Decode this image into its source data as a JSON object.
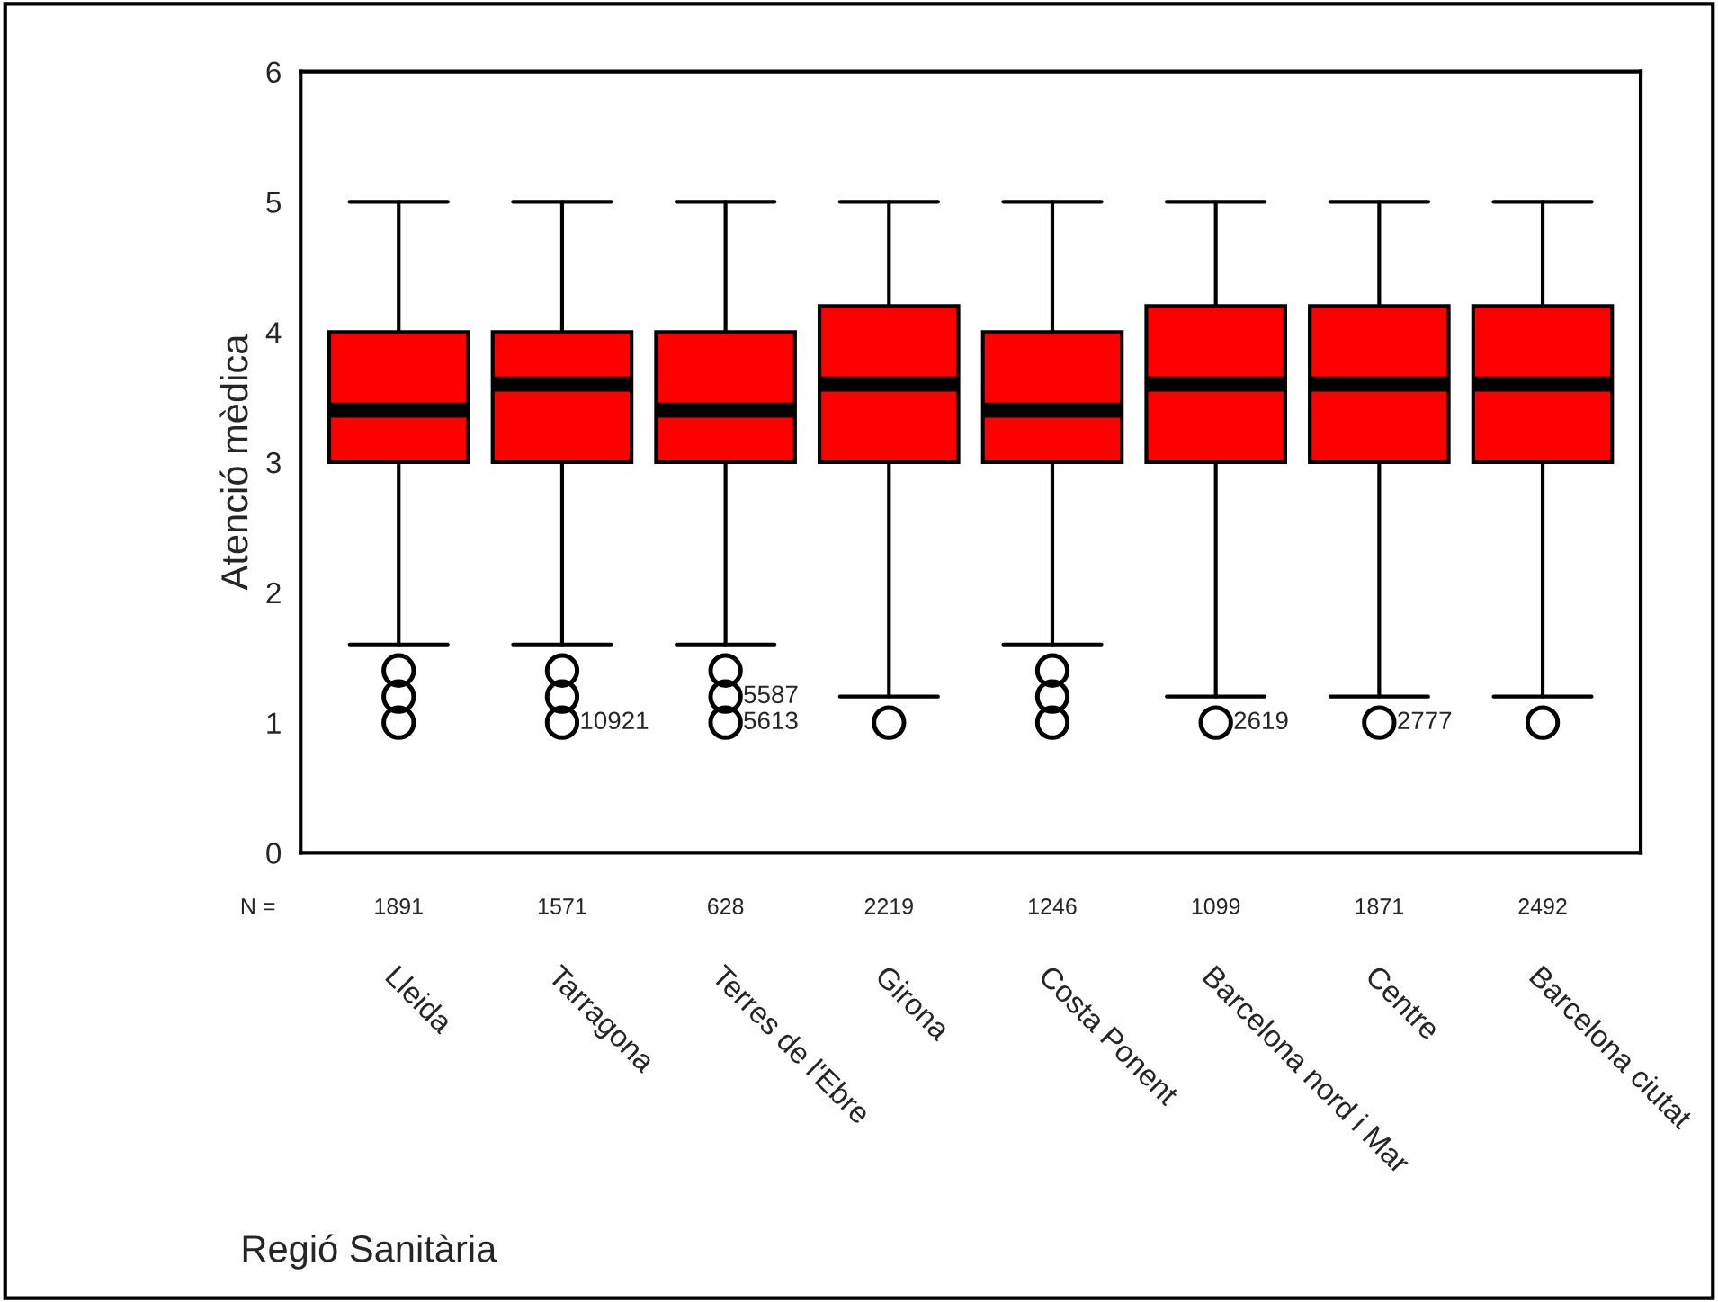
{
  "chart_data": {
    "type": "box",
    "xlabel": "Regió Sanitària",
    "ylabel": "Atenció mèdica",
    "categories": [
      "Lleida",
      "Tarragona",
      "Terres de l'Ebre",
      "Girona",
      "Costa Ponent",
      "Barcelona nord i Mar",
      "Centre",
      "Barcelona ciutat"
    ],
    "color": "#ff0000",
    "boxes": [
      {
        "low": 1.6,
        "q1": 3,
        "median": 3.4,
        "q3": 4,
        "high": 5,
        "outliers": [
          1.4,
          1.2,
          1.0
        ]
      },
      {
        "low": 1.6,
        "q1": 3,
        "median": 3.6,
        "q3": 4,
        "high": 5,
        "outliers": [
          1.4,
          1.2,
          1.0
        ]
      },
      {
        "low": 1.6,
        "q1": 3,
        "median": 3.4,
        "q3": 4,
        "high": 5,
        "outliers": [
          1.4,
          1.2,
          1.0
        ]
      },
      {
        "low": 1.2,
        "q1": 3,
        "median": 3.6,
        "q3": 4.2,
        "high": 5,
        "outliers": [
          1.0
        ]
      },
      {
        "low": 1.6,
        "q1": 3,
        "median": 3.4,
        "q3": 4,
        "high": 5,
        "outliers": [
          1.4,
          1.2,
          1.0
        ]
      },
      {
        "low": 1.2,
        "q1": 3,
        "median": 3.6,
        "q3": 4.2,
        "high": 5,
        "outliers": [
          1.0
        ]
      },
      {
        "low": 1.2,
        "q1": 3,
        "median": 3.6,
        "q3": 4.2,
        "high": 5,
        "outliers": [
          1.0
        ]
      },
      {
        "low": 1.2,
        "q1": 3,
        "median": 3.6,
        "q3": 4.2,
        "high": 5,
        "outliers": [
          1.0
        ]
      }
    ],
    "ylim": [
      0,
      6
    ],
    "yticks": [
      0,
      1,
      2,
      3,
      4,
      5,
      6
    ],
    "grid": false,
    "legend": false,
    "annotations": [
      "N =",
      "1891",
      "1571",
      "628",
      "2219",
      "1246",
      "1099",
      "1871",
      "2492",
      "10921",
      "5587",
      "5613",
      "2619",
      "2777"
    ]
  }
}
